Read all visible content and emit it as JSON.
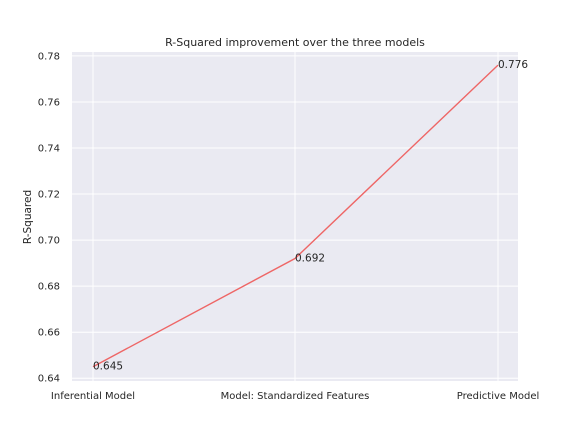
{
  "chart_data": {
    "type": "line",
    "title": "R-Squared improvement over the three models",
    "xlabel": "",
    "ylabel": "R-Squared",
    "categories": [
      "Inferential Model",
      "Model: Standardized Features",
      "Predictive Model"
    ],
    "series": [
      {
        "values": [
          0.645,
          0.692,
          0.776
        ],
        "color": "#ee6666"
      }
    ],
    "data_labels": [
      "0.645",
      "0.692",
      "0.776"
    ],
    "yticks": [
      "0.64",
      "0.66",
      "0.68",
      "0.70",
      "0.72",
      "0.74",
      "0.76",
      "0.78"
    ],
    "ylim": [
      0.6388,
      0.7817
    ],
    "grid": true,
    "background": "#eaeaf2",
    "grid_color": "#ffffff"
  }
}
